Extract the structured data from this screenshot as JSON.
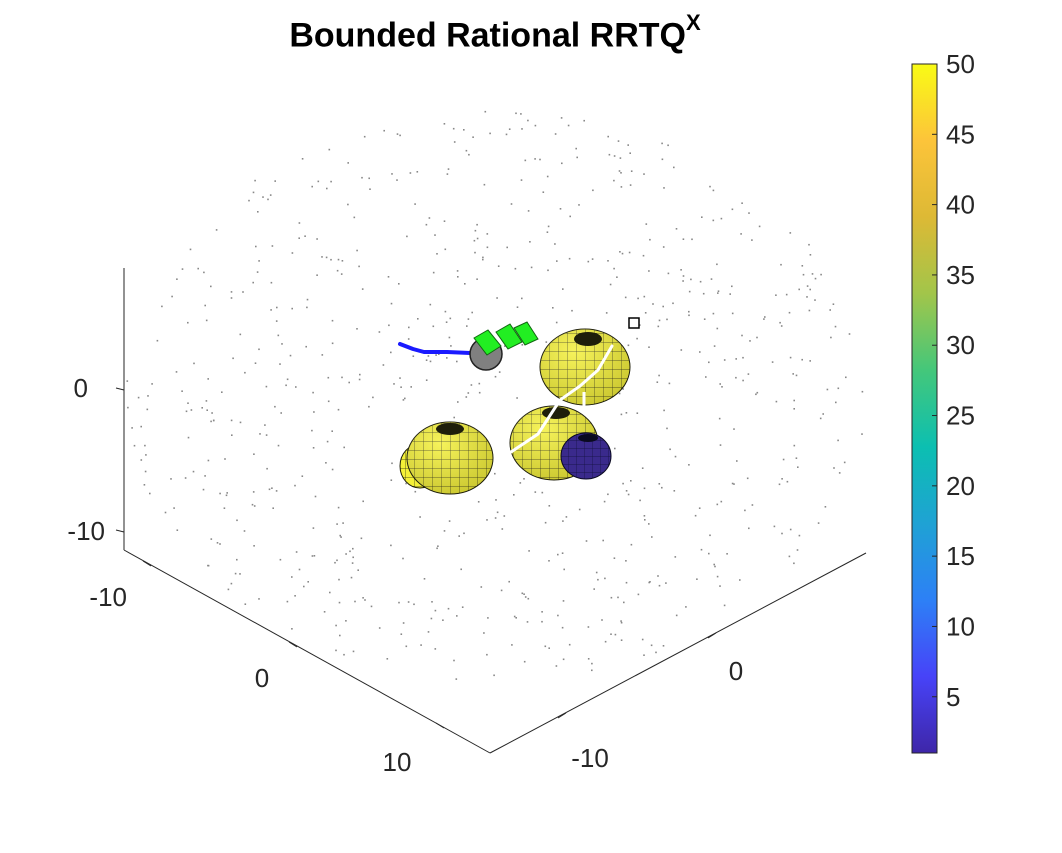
{
  "chart_data": {
    "type": "scatter",
    "title": "Bounded Rational RRTQ",
    "title_superscript": "X",
    "axes_3d": {
      "x_ticks": [
        "-10",
        "0",
        "10"
      ],
      "y_ticks": [
        "-10",
        "0"
      ],
      "z_ticks": [
        "-10",
        "0"
      ],
      "grid": false
    },
    "colorbar": {
      "ticks": [
        "5",
        "10",
        "15",
        "20",
        "25",
        "30",
        "35",
        "40",
        "45",
        "50"
      ],
      "range": [
        1,
        50
      ],
      "colormap": "parula",
      "placement": "right"
    },
    "tree_nodes": {
      "color": "#888888",
      "count": 750
    },
    "obstacles": [
      {
        "shape": "sphere",
        "color_value": 50,
        "color": "#f4f037"
      },
      {
        "shape": "sphere",
        "color_value": 50,
        "color": "#f4f037"
      },
      {
        "shape": "sphere",
        "color_value": 50,
        "color": "#f4f037"
      },
      {
        "shape": "sphere",
        "color_value": 1,
        "color": "#3a2a8c"
      }
    ],
    "robot": {
      "color": "#808080",
      "path_color": "#1a1aff"
    },
    "solar_panels": {
      "color": "#22ee22"
    },
    "goal_marker": {
      "shape": "square",
      "color": "#000000"
    },
    "planned_path_color": "#ffffff"
  },
  "colors": {
    "axis_line": "#262626",
    "tick_label": "#262626",
    "parula": [
      "#3e26a8",
      "#4743f8",
      "#2d80f6",
      "#1fa2d4",
      "#0cbfb1",
      "#44c77a",
      "#a2c54a",
      "#ddb935",
      "#fcc43a",
      "#f9fb15"
    ]
  }
}
